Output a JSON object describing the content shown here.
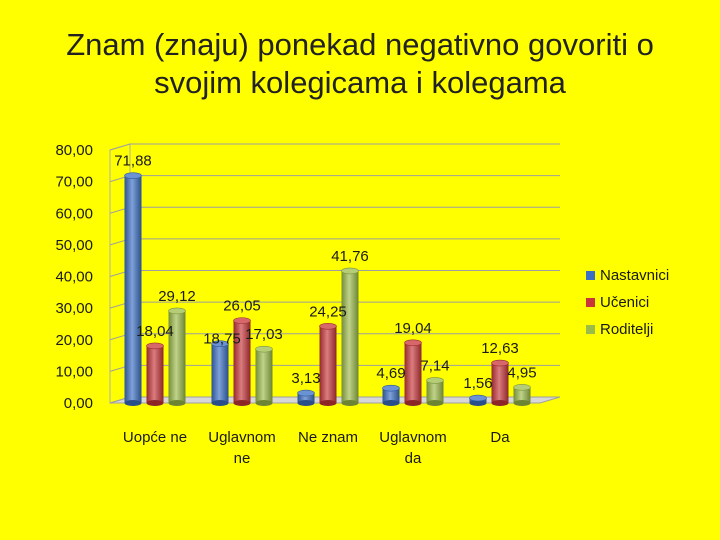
{
  "page": {
    "background": "#ffff00"
  },
  "chart_data": {
    "type": "bar",
    "title_lines": [
      "Znam (znaju) ponekad negativno govoriti o",
      "svojim kolegicama i kolegama"
    ],
    "categories": [
      [
        "Uopće ne"
      ],
      [
        "Uglavnom",
        "ne"
      ],
      [
        "Ne znam"
      ],
      [
        "Uglavnom",
        "da"
      ],
      [
        "Da"
      ]
    ],
    "series": [
      {
        "name": "Nastavnici",
        "color": "#3a6fc4",
        "values": [
          71.88,
          18.75,
          3.13,
          4.69,
          1.56
        ],
        "labels": [
          "71,88",
          "18,75",
          "3,13",
          "4,69",
          "1,56"
        ]
      },
      {
        "name": "Učenici",
        "color": "#c8363a",
        "values": [
          18.04,
          26.05,
          24.25,
          19.04,
          12.63
        ],
        "labels": [
          "18,04",
          "26,05",
          "24,25",
          "19,04",
          "12,63"
        ]
      },
      {
        "name": "Roditelji",
        "color": "#9cbc4a",
        "values": [
          29.12,
          17.03,
          41.76,
          7.14,
          4.95
        ],
        "labels": [
          "29,12",
          "17,03",
          "41,76",
          "7,14",
          "4,95"
        ]
      }
    ],
    "ylim": [
      0,
      80
    ],
    "yticks": [
      "0,00",
      "10,00",
      "20,00",
      "30,00",
      "40,00",
      "50,00",
      "60,00",
      "70,00",
      "80,00"
    ],
    "grid": true,
    "legend_position": "right"
  }
}
